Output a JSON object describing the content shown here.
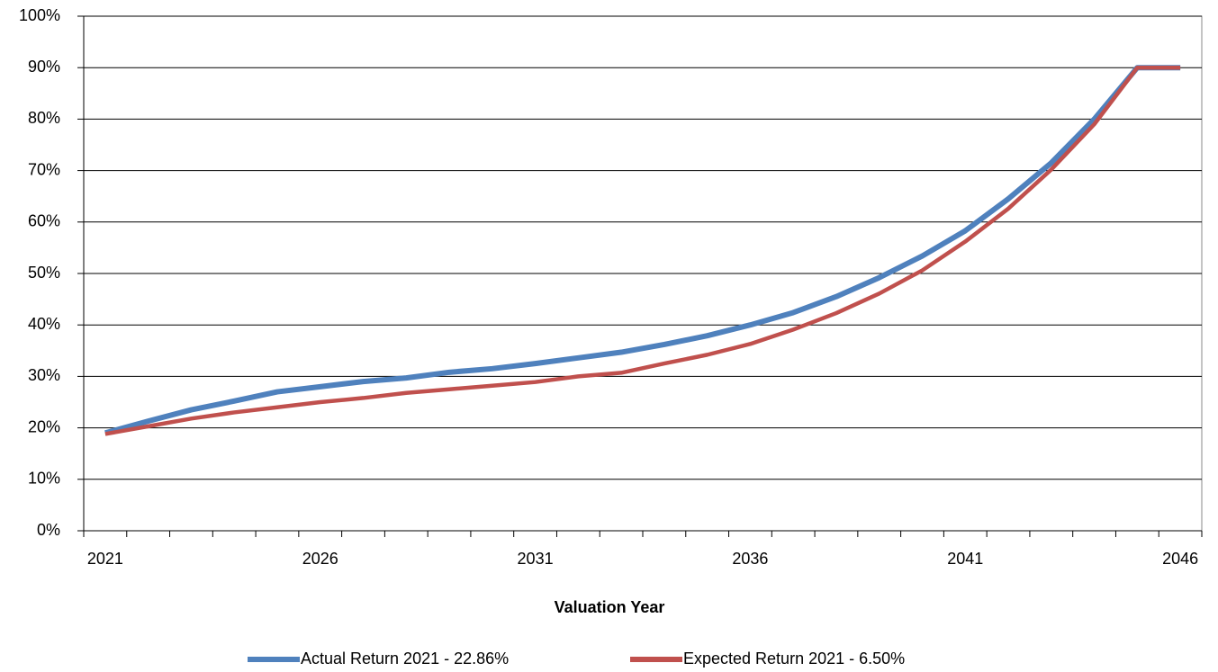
{
  "chart_data": {
    "type": "line",
    "x_label": "Valuation Year",
    "categories": [
      "2021",
      null,
      null,
      null,
      null,
      "2026",
      null,
      null,
      null,
      null,
      "2031",
      null,
      null,
      null,
      null,
      "2036",
      null,
      null,
      null,
      null,
      "2041",
      null,
      null,
      null,
      null,
      "2046"
    ],
    "series": [
      {
        "name": "Actual Return 2021 - 22.86%",
        "color": "#4f81bd",
        "values": [
          19,
          21.3,
          23.5,
          25.2,
          27,
          28,
          29,
          29.7,
          30.8,
          31.5,
          32.5,
          33.6,
          34.7,
          36.2,
          37.9,
          40,
          42.4,
          45.5,
          49.2,
          53.4,
          58.3,
          64.5,
          71.5,
          80,
          90,
          90
        ]
      },
      {
        "name": "Expected Return 2021 - 6.50%",
        "color": "#c0504d",
        "values": [
          18.8,
          20.3,
          21.8,
          23,
          24,
          25,
          25.8,
          26.8,
          27.5,
          28.2,
          28.9,
          30,
          30.7,
          32.5,
          34.2,
          36.3,
          39.1,
          42.3,
          46.1,
          50.6,
          56.2,
          62.6,
          70.2,
          79,
          90,
          90
        ]
      }
    ],
    "ylim": [
      0,
      100
    ],
    "yticks": [
      {
        "value": 0,
        "label": "0%"
      },
      {
        "value": 10,
        "label": "10%"
      },
      {
        "value": 20,
        "label": "20%"
      },
      {
        "value": 30,
        "label": "30%"
      },
      {
        "value": 40,
        "label": "40%"
      },
      {
        "value": 50,
        "label": "50%"
      },
      {
        "value": 60,
        "label": "60%"
      },
      {
        "value": 70,
        "label": "70%"
      },
      {
        "value": 80,
        "label": "80%"
      },
      {
        "value": 90,
        "label": "90%"
      },
      {
        "value": 100,
        "label": "100%"
      }
    ],
    "grid": true,
    "legend": "bottom"
  }
}
